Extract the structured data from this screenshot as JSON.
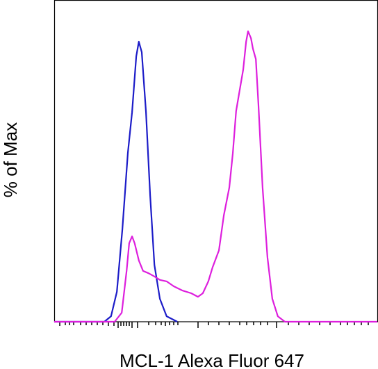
{
  "chart_data": {
    "type": "line",
    "x_label": "MCL-1 Alexa Fluor 647",
    "y_label": "% of Max",
    "xlim": [
      0,
      100
    ],
    "ylim": [
      0,
      100
    ],
    "series": [
      {
        "color": "#1c1cc8",
        "x": [
          0,
          15.5,
          17.6,
          19.4,
          21.1,
          22.8,
          24.1,
          25.4,
          26.2,
          27.1,
          28.4,
          29.7,
          31.0,
          32.7,
          34.8,
          38.1
        ],
        "values": [
          0,
          0,
          1.9,
          10.3,
          31.8,
          58.1,
          72.2,
          91.4,
          96.4,
          92.8,
          72.2,
          43.5,
          19.6,
          7.9,
          1.9,
          0
        ]
      },
      {
        "color": "#dd1fdd",
        "x": [
          0,
          18.7,
          20.9,
          22.4,
          23.2,
          24.1,
          24.9,
          26.2,
          27.5,
          29.2,
          31.0,
          32.7,
          34.8,
          37.0,
          39.6,
          42.4,
          44.5,
          46.0,
          47.7,
          49.0,
          51.0,
          52.5,
          54.2,
          55.3,
          56.3,
          57.4,
          58.5,
          59.4,
          60.0,
          60.9,
          61.5,
          62.4,
          63.2,
          64.5,
          66.0,
          67.5,
          69.2,
          71.4,
          100
        ],
        "values": [
          0,
          0,
          3.1,
          17.5,
          27.0,
          29.4,
          27.0,
          21.1,
          17.5,
          16.7,
          15.6,
          14.4,
          13.9,
          12.2,
          10.8,
          9.8,
          8.6,
          9.8,
          13.9,
          18.7,
          24.6,
          36.6,
          46.2,
          58.1,
          72.5,
          79.7,
          86.8,
          96.4,
          100,
          97.6,
          94.0,
          90.4,
          74.9,
          46.2,
          22.2,
          7.9,
          1.9,
          0,
          0
        ]
      }
    ]
  }
}
